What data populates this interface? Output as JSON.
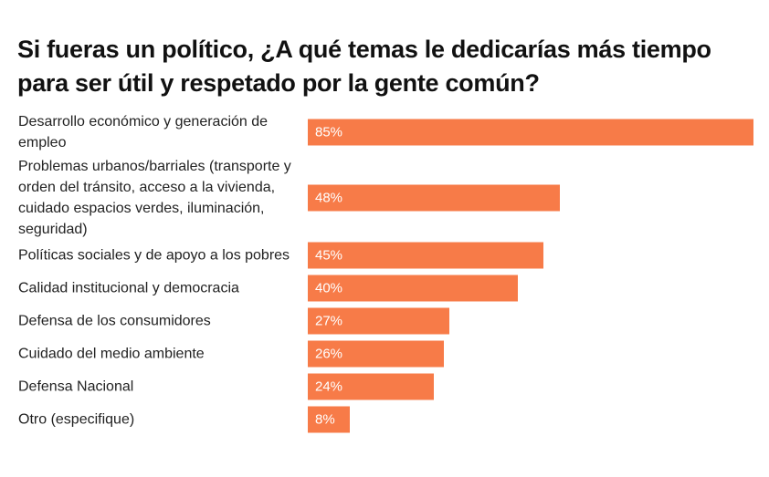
{
  "chart_data": {
    "type": "bar",
    "orientation": "horizontal",
    "title": "Si fueras un político, ¿A qué temas le dedicarías más tiempo para ser útil y respetado por la gente común?",
    "categories": [
      "Desarrollo económico y generación de empleo",
      "Problemas urbanos/barriales (transporte y orden del tránsito, acceso a la vivienda, cuidado espacios verdes, iluminación, seguridad)",
      "Políticas sociales y de apoyo a los pobres",
      "Calidad institucional y democracia",
      "Defensa de los consumidores",
      "Cuidado del medio ambiente",
      "Defensa Nacional",
      "Otro (especifique)"
    ],
    "values": [
      85,
      48,
      45,
      40,
      27,
      26,
      24,
      8
    ],
    "data_labels": [
      "85%",
      "48%",
      "45%",
      "40%",
      "27%",
      "26%",
      "24%",
      "8%"
    ],
    "unit": "%",
    "xlim": [
      0,
      85
    ],
    "grid": false,
    "bar_color": "#F77B48",
    "label_color": "#FFFFFF"
  }
}
